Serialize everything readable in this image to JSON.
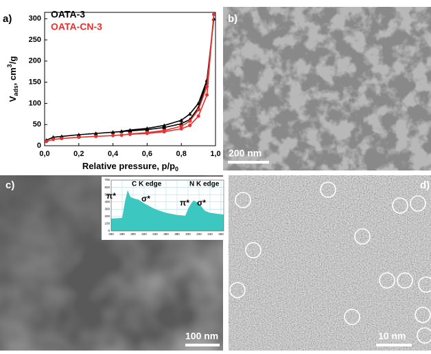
{
  "panels": {
    "a": "a)",
    "b": "b)",
    "c": "c)",
    "d": "d)"
  },
  "scale_bars": {
    "b": "200 nm",
    "c": "100 nm",
    "d": "10 nm"
  },
  "chart_data": [
    {
      "type": "line",
      "x_label": "Relative pressure, p/p",
      "x_label_sub": "0",
      "y_label": "V",
      "y_label_sub": "ads",
      "y_label_mid": ", cm",
      "y_label_sup": "3",
      "y_label_end": "/g",
      "xlim": [
        0,
        1
      ],
      "ylim": [
        0,
        315
      ],
      "xticks": [
        {
          "value": 0,
          "label": "0,0"
        },
        {
          "value": 0.2,
          "label": "0,2"
        },
        {
          "value": 0.4,
          "label": "0,4"
        },
        {
          "value": 0.6,
          "label": "0,6"
        },
        {
          "value": 0.8,
          "label": "0,8"
        },
        {
          "value": 1,
          "label": "1,0"
        }
      ],
      "yticks": [
        0,
        50,
        100,
        150,
        200,
        250,
        300
      ],
      "series": [
        {
          "name": "OATA-3",
          "color": "#000000",
          "marker": "triangle",
          "x": [
            0.01,
            0.05,
            0.1,
            0.2,
            0.3,
            0.4,
            0.5,
            0.6,
            0.7,
            0.8,
            0.85,
            0.9,
            0.95,
            0.99,
            0.95,
            0.9,
            0.85,
            0.8,
            0.7,
            0.6,
            0.5,
            0.45
          ],
          "values": [
            13,
            20,
            22,
            26,
            29,
            32,
            35,
            38,
            43,
            52,
            62,
            90,
            150,
            300,
            155,
            100,
            75,
            60,
            48,
            41,
            37,
            34
          ]
        },
        {
          "name": "OATA-CN-3",
          "color": "#e8312f",
          "marker": "circle",
          "x": [
            0.01,
            0.05,
            0.1,
            0.2,
            0.3,
            0.4,
            0.5,
            0.6,
            0.7,
            0.8,
            0.85,
            0.9,
            0.95,
            0.99,
            0.95,
            0.9,
            0.85,
            0.8,
            0.7,
            0.6,
            0.5,
            0.45
          ],
          "values": [
            10,
            15,
            17,
            20,
            22,
            24,
            27,
            29,
            33,
            40,
            48,
            70,
            120,
            310,
            140,
            85,
            58,
            46,
            36,
            31,
            28,
            25
          ]
        }
      ]
    },
    {
      "type": "area",
      "color": "#3cc8c0",
      "xlim": [
        260,
        465
      ],
      "ylim": [
        0,
        700
      ],
      "xticks": [
        260,
        280,
        300,
        320,
        340,
        360,
        380,
        400,
        420,
        440,
        460
      ],
      "yticks": [
        0,
        100,
        200,
        300,
        400,
        500,
        600,
        700
      ],
      "x": [
        260,
        270,
        280,
        285,
        290,
        295,
        300,
        310,
        320,
        340,
        360,
        380,
        395,
        400,
        405,
        410,
        420,
        430,
        440,
        460,
        465
      ],
      "values": [
        170,
        175,
        180,
        400,
        560,
        470,
        450,
        430,
        380,
        300,
        250,
        220,
        210,
        300,
        370,
        420,
        380,
        280,
        250,
        230,
        225
      ],
      "annotations": [
        "C K edge",
        "N K edge",
        "π*",
        "σ*",
        "π*",
        "σ*"
      ]
    }
  ]
}
